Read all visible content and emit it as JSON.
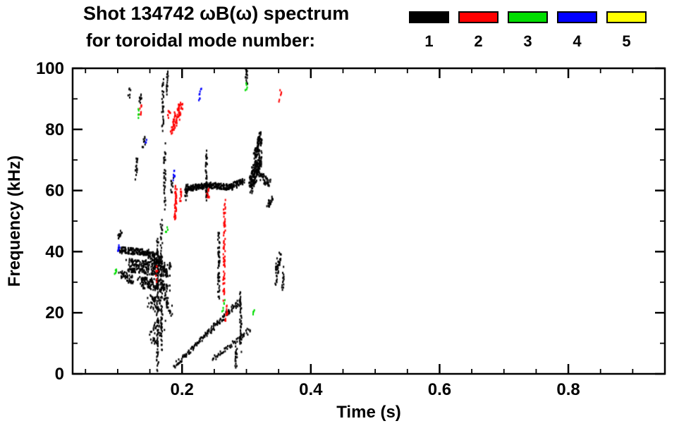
{
  "header": {
    "title_line1": "Shot 134742 ωB(ω) spectrum",
    "title_line2": "for toroidal mode number:"
  },
  "legend": {
    "items": [
      {
        "label": "1",
        "color": "#000000"
      },
      {
        "label": "2",
        "color": "#ff0000"
      },
      {
        "label": "3",
        "color": "#00dd00"
      },
      {
        "label": "4",
        "color": "#0000ff"
      },
      {
        "label": "5",
        "color": "#ffff00"
      }
    ]
  },
  "chart_data": {
    "type": "scatter",
    "title": "Shot 134742 ωB(ω) spectrum for toroidal mode number: 1 2 3 4 5",
    "xlabel": "Time (s)",
    "ylabel": "Frequency (kHz)",
    "xlim": [
      0.03,
      0.95
    ],
    "ylim": [
      0,
      100
    ],
    "grid": false,
    "legend_position": "top-right",
    "xticks": {
      "major": [
        0.2,
        0.4,
        0.6,
        0.8
      ],
      "labels": [
        "0.2",
        "0.4",
        "0.6",
        "0.8"
      ],
      "minor_step": 0.05
    },
    "yticks": {
      "major": [
        0,
        20,
        40,
        60,
        80,
        100
      ],
      "labels": [
        "0",
        "20",
        "40",
        "60",
        "80",
        "100"
      ],
      "minor_step": 10
    },
    "series": [
      {
        "name": "n=1",
        "color": "#000000",
        "point_size": [
          2,
          3
        ],
        "segments": [
          [
            0.103,
            40.5,
            0.149,
            39.8,
            140,
            0.003,
            1.0
          ],
          [
            0.148,
            39.2,
            0.168,
            37.0,
            70,
            0.003,
            1.3
          ],
          [
            0.1,
            44.8,
            0.106,
            46.0,
            14,
            0.002,
            1.0
          ],
          [
            0.104,
            32.5,
            0.124,
            30.5,
            45,
            0.003,
            1.5
          ],
          [
            0.117,
            35.5,
            0.18,
            34.0,
            240,
            0.005,
            2.3
          ],
          [
            0.133,
            30.0,
            0.177,
            28.5,
            130,
            0.005,
            1.8
          ],
          [
            0.15,
            24.0,
            0.165,
            21.5,
            50,
            0.004,
            2.2
          ],
          [
            0.152,
            11.0,
            0.17,
            17.0,
            45,
            0.005,
            2.8
          ],
          [
            0.172,
            26.0,
            0.183,
            20.0,
            30,
            0.003,
            2.0
          ],
          [
            0.162,
            1.5,
            0.162,
            45.0,
            80,
            0.0015,
            1.5
          ],
          [
            0.168,
            8.0,
            0.168,
            50.0,
            70,
            0.0015,
            1.5
          ],
          [
            0.173,
            55.0,
            0.173,
            74.0,
            36,
            0.0015,
            1.5
          ],
          [
            0.17,
            80.0,
            0.17,
            96.0,
            30,
            0.0015,
            1.5
          ],
          [
            0.177,
            92.0,
            0.177,
            100.0,
            18,
            0.0015,
            1.2
          ],
          [
            0.135,
            88.5,
            0.137,
            91.5,
            10,
            0.002,
            1.0
          ],
          [
            0.117,
            91.0,
            0.119,
            93.0,
            6,
            0.002,
            1.0
          ],
          [
            0.128,
            65.0,
            0.131,
            70.0,
            16,
            0.002,
            1.5
          ],
          [
            0.14,
            74.5,
            0.142,
            77.0,
            8,
            0.002,
            1.0
          ],
          [
            0.183,
            60.0,
            0.185,
            63.0,
            10,
            0.002,
            1.2
          ],
          [
            0.205,
            57.5,
            0.207,
            61.0,
            14,
            0.002,
            1.2
          ],
          [
            0.207,
            60.6,
            0.237,
            61.6,
            110,
            0.003,
            0.9
          ],
          [
            0.237,
            61.8,
            0.278,
            61.0,
            140,
            0.003,
            0.9
          ],
          [
            0.278,
            61.5,
            0.295,
            63.0,
            50,
            0.003,
            1.0
          ],
          [
            0.238,
            57.0,
            0.238,
            73.0,
            40,
            0.0015,
            1.5
          ],
          [
            0.188,
            2.5,
            0.291,
            24.0,
            150,
            0.002,
            0.8
          ],
          [
            0.247,
            4.5,
            0.306,
            14.5,
            55,
            0.002,
            0.8
          ],
          [
            0.257,
            26.0,
            0.257,
            46.0,
            55,
            0.0015,
            1.8
          ],
          [
            0.291,
            8.0,
            0.291,
            26.0,
            45,
            0.0015,
            1.8
          ],
          [
            0.284,
            2.5,
            0.284,
            9.0,
            20,
            0.0015,
            1.2
          ],
          [
            0.306,
            62.0,
            0.322,
            70.5,
            190,
            0.003,
            3.2
          ],
          [
            0.313,
            71.0,
            0.323,
            78.0,
            80,
            0.002,
            2.2
          ],
          [
            0.322,
            64.5,
            0.336,
            62.5,
            45,
            0.003,
            1.3
          ],
          [
            0.333,
            55.5,
            0.341,
            57.0,
            22,
            0.002,
            1.3
          ],
          [
            0.3,
            95.0,
            0.3,
            100.0,
            14,
            0.0015,
            1.2
          ],
          [
            0.345,
            31.0,
            0.352,
            38.0,
            40,
            0.0025,
            2.2
          ],
          [
            0.356,
            27.0,
            0.358,
            33.5,
            14,
            0.0015,
            1.6
          ]
        ]
      },
      {
        "name": "n=2",
        "color": "#ff0000",
        "point_size": [
          2,
          3
        ],
        "segments": [
          [
            0.184,
            80.0,
            0.199,
            87.5,
            70,
            0.003,
            2.2
          ],
          [
            0.179,
            84.0,
            0.181,
            86.5,
            8,
            0.0015,
            1.0
          ],
          [
            0.189,
            51.0,
            0.191,
            61.0,
            45,
            0.0015,
            2.0
          ],
          [
            0.197,
            57.0,
            0.199,
            60.0,
            10,
            0.0015,
            1.2
          ],
          [
            0.265,
            25.0,
            0.266,
            56.0,
            70,
            0.0015,
            2.0
          ],
          [
            0.268,
            17.5,
            0.27,
            22.5,
            12,
            0.0015,
            1.3
          ],
          [
            0.24,
            57.5,
            0.242,
            61.0,
            10,
            0.0015,
            1.2
          ],
          [
            0.16,
            31.0,
            0.162,
            35.0,
            8,
            0.0015,
            1.3
          ],
          [
            0.352,
            90.0,
            0.354,
            92.5,
            6,
            0.0015,
            1.0
          ],
          [
            0.135,
            84.0,
            0.137,
            88.0,
            8,
            0.0015,
            1.2
          ]
        ]
      },
      {
        "name": "n=3",
        "color": "#00dd00",
        "point_size": [
          2,
          3
        ],
        "segments": [
          [
            0.131,
            84.5,
            0.133,
            86.5,
            5,
            0.0015,
            0.8
          ],
          [
            0.096,
            32.5,
            0.098,
            34.0,
            5,
            0.0015,
            0.8
          ],
          [
            0.263,
            21.0,
            0.265,
            23.5,
            6,
            0.0015,
            0.8
          ],
          [
            0.299,
            93.0,
            0.301,
            95.0,
            5,
            0.0015,
            0.8
          ],
          [
            0.311,
            19.5,
            0.313,
            21.0,
            4,
            0.0015,
            0.8
          ],
          [
            0.176,
            46.0,
            0.177,
            47.5,
            4,
            0.0015,
            0.8
          ]
        ]
      },
      {
        "name": "n=4",
        "color": "#0000ff",
        "point_size": [
          2,
          3
        ],
        "segments": [
          [
            0.1,
            40.3,
            0.103,
            41.5,
            8,
            0.0015,
            0.8
          ],
          [
            0.187,
            64.0,
            0.189,
            66.0,
            8,
            0.0015,
            0.9
          ],
          [
            0.227,
            90.0,
            0.229,
            93.0,
            8,
            0.0015,
            0.9
          ],
          [
            0.143,
            75.5,
            0.144,
            76.5,
            3,
            0.001,
            0.6
          ]
        ]
      },
      {
        "name": "n=5",
        "color": "#ffff00",
        "point_size": [
          2,
          3
        ],
        "segments": []
      }
    ]
  }
}
